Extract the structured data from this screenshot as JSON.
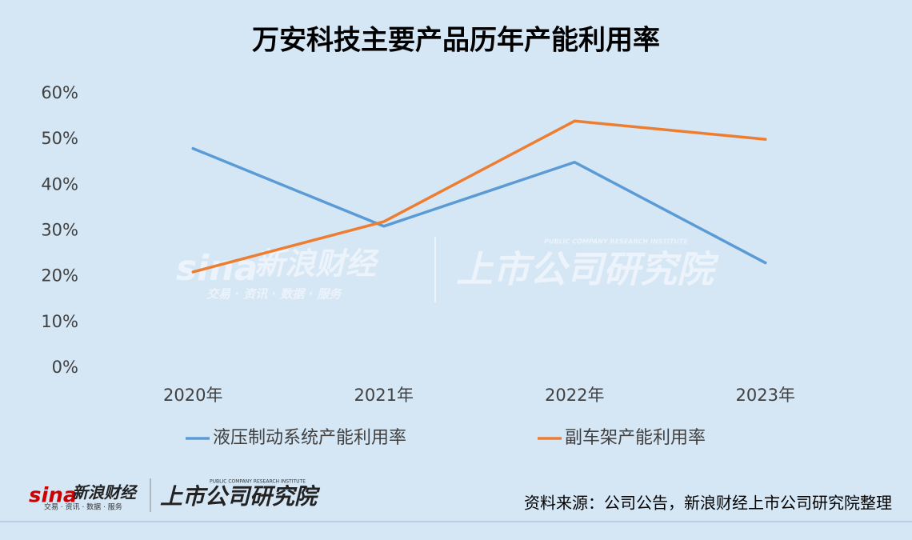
{
  "chart_data": {
    "type": "line",
    "title": "万安科技主要产品历年产能利用率",
    "categories": [
      "2020年",
      "2021年",
      "2022年",
      "2023年"
    ],
    "series": [
      {
        "name": "液压制动系统产能利用率",
        "color": "#5b9bd5",
        "values": [
          48,
          31,
          45,
          23
        ]
      },
      {
        "name": "副车架产能利用率",
        "color": "#ed7d31",
        "values": [
          21,
          32,
          54,
          50
        ]
      }
    ],
    "ylim": [
      0,
      60
    ],
    "yticks": [
      {
        "value": 0,
        "label": "0%"
      },
      {
        "value": 10,
        "label": "10%"
      },
      {
        "value": 20,
        "label": "20%"
      },
      {
        "value": 30,
        "label": "30%"
      },
      {
        "value": 40,
        "label": "40%"
      },
      {
        "value": 50,
        "label": "50%"
      },
      {
        "value": 60,
        "label": "60%"
      }
    ],
    "grid": false,
    "legend": "bottom",
    "source": "资料来源：公司公告，新浪财经上市公司研究院整理",
    "logo": {
      "sina": "sina",
      "name": "新浪财经",
      "tagline": "交易 · 资讯 · 数据 · 服务",
      "institute": "上市公司研究院",
      "institute_en": "PUBLIC COMPANY RESEARCH INSTITUTE"
    }
  }
}
